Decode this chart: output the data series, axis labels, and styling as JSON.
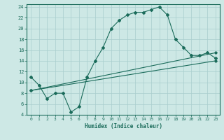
{
  "xlabel": "Humidex (Indice chaleur)",
  "bg_color": "#cde8e5",
  "grid_color": "#a8cece",
  "line_color": "#1a6b5a",
  "xlim": [
    -0.5,
    23.5
  ],
  "ylim": [
    4,
    24.5
  ],
  "xticks": [
    0,
    1,
    2,
    3,
    4,
    5,
    6,
    7,
    8,
    9,
    10,
    11,
    12,
    13,
    14,
    15,
    16,
    17,
    18,
    19,
    20,
    21,
    22,
    23
  ],
  "yticks": [
    4,
    6,
    8,
    10,
    12,
    14,
    16,
    18,
    20,
    22,
    24
  ],
  "curve1_x": [
    0,
    1,
    2,
    3,
    4,
    5,
    6,
    7,
    8,
    9,
    10,
    11,
    12,
    13,
    14,
    15,
    16,
    17,
    18,
    19,
    20,
    21,
    22,
    23
  ],
  "curve1_y": [
    11,
    9.5,
    7,
    8,
    8,
    4.5,
    5.5,
    11,
    14,
    16.5,
    20,
    21.5,
    22.5,
    23,
    23,
    23.5,
    24,
    22.5,
    18,
    16.5,
    15,
    15,
    15.5,
    14.5
  ],
  "curve2_x": [
    0,
    23
  ],
  "curve2_y": [
    8.5,
    14.0
  ],
  "curve3_x": [
    0,
    23
  ],
  "curve3_y": [
    8.5,
    15.5
  ]
}
